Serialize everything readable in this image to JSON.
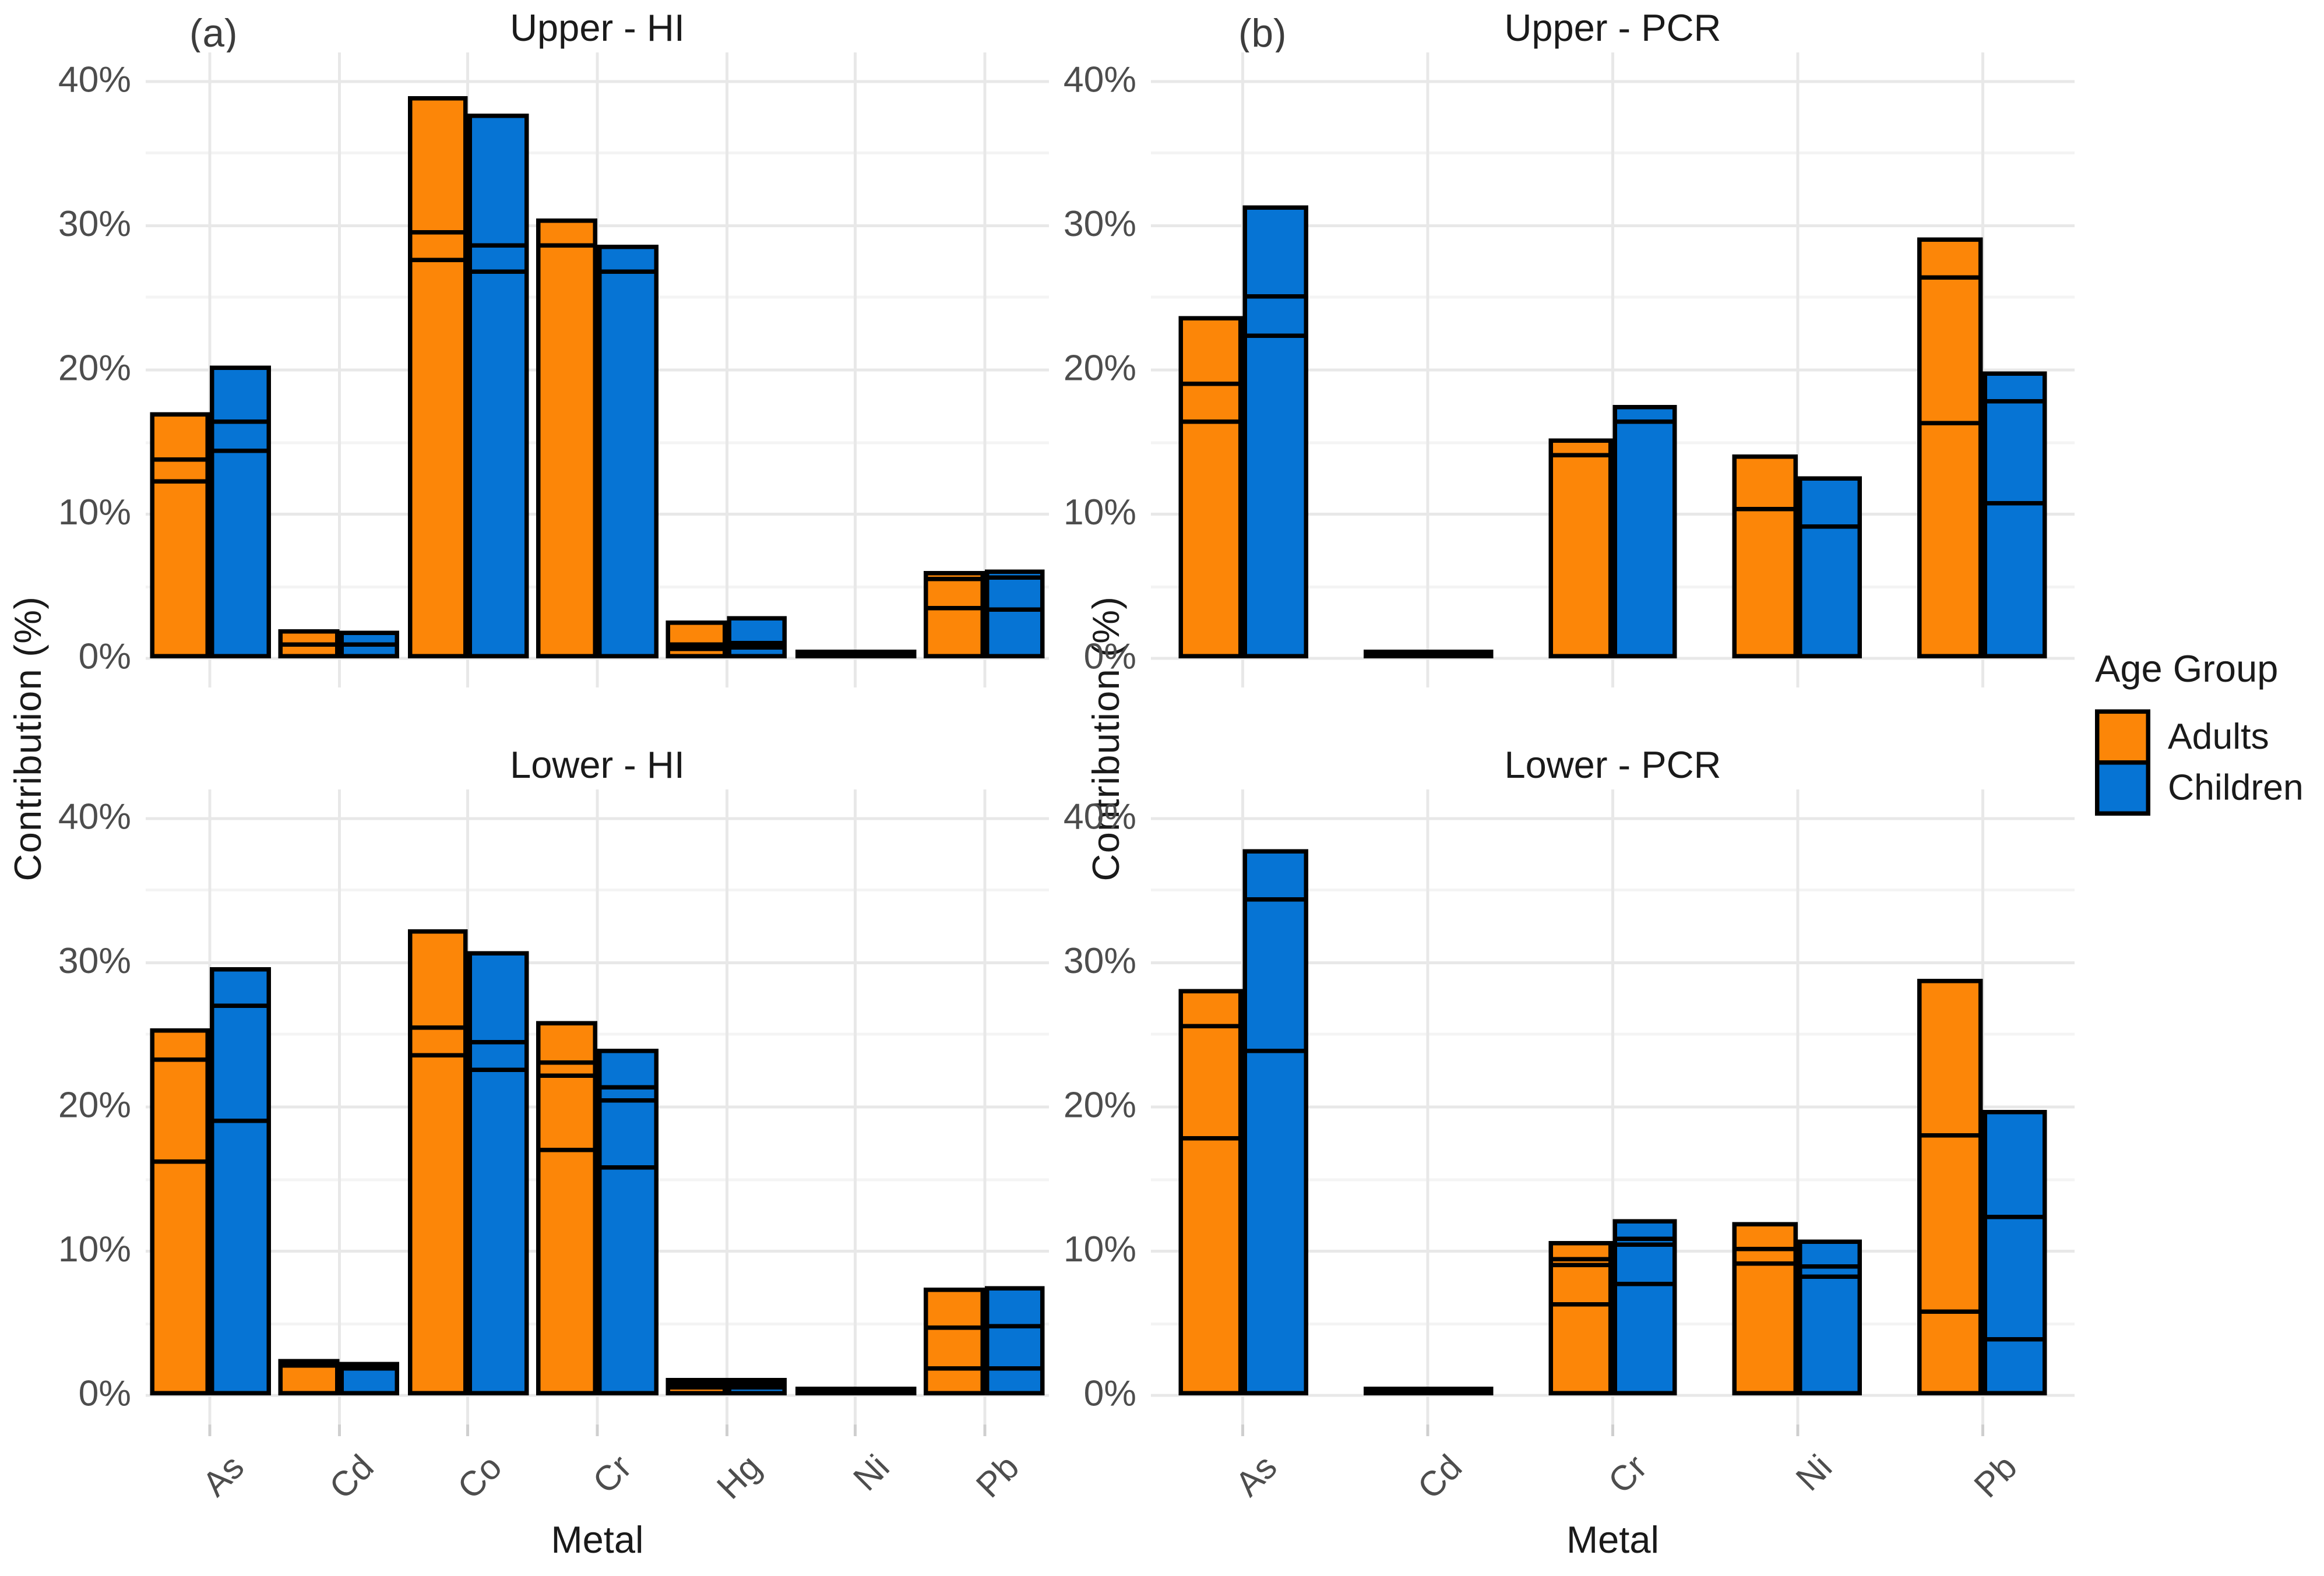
{
  "figure": {
    "tag_a": "(a)",
    "tag_b": "(b)",
    "background": "#ffffff"
  },
  "axes": {
    "y_label": "Contribution (%)",
    "x_label": "Metal",
    "y_tick_labels": [
      "0%",
      "10%",
      "20%",
      "30%",
      "40%"
    ],
    "y_tick_values": [
      0,
      10,
      20,
      30,
      40
    ],
    "y_minor_values": [
      5,
      15,
      25,
      35
    ],
    "ylim": [
      0,
      40
    ]
  },
  "legend": {
    "title": "Age Group",
    "entries": [
      {
        "label": "Adults",
        "color": "#fc8608"
      },
      {
        "label": "Children",
        "color": "#0674d4"
      }
    ]
  },
  "colors": {
    "adults_orange": "#fc8608",
    "children_blue": "#0674d4",
    "bar_border": "#000000",
    "grid_major": "#e8e8e8",
    "grid_minor": "#f4f4f4",
    "tick_text": "#4d4d4d",
    "title_text": "#1a1a1a"
  },
  "chart_data": [
    {
      "type": "bar",
      "title": "Upper - HI",
      "facet_tag": "a",
      "categories": [
        "As",
        "Cd",
        "Co",
        "Cr",
        "Hg",
        "Ni",
        "Pb"
      ],
      "ylim": [
        0,
        40
      ],
      "stacked_note": "values are cumulative segment boundaries in percent; last value = bar total",
      "series": [
        {
          "name": "Adults",
          "cum": [
            [
              12.3,
              13.8,
              17.1
            ],
            [
              1.0,
              2.0
            ],
            [
              27.6,
              29.5,
              39.0
            ],
            [
              28.6,
              30.5
            ],
            [
              0.7,
              1.0,
              2.6
            ],
            [
              0.4
            ],
            [
              3.5,
              5.5,
              6.1
            ]
          ]
        },
        {
          "name": "Children",
          "cum": [
            [
              14.4,
              16.4,
              20.3
            ],
            [
              0.95,
              1.9
            ],
            [
              26.8,
              28.6,
              37.8
            ],
            [
              26.8,
              28.7
            ],
            [
              0.8,
              1.1,
              2.9
            ],
            [
              0.2
            ],
            [
              3.4,
              5.6,
              6.2
            ]
          ]
        }
      ]
    },
    {
      "type": "bar",
      "title": "Lower - HI",
      "facet_tag": "a",
      "categories": [
        "As",
        "Cd",
        "Co",
        "Cr",
        "Hg",
        "Ni",
        "Pb"
      ],
      "ylim": [
        0,
        40
      ],
      "series": [
        {
          "name": "Adults",
          "cum": [
            [
              16.2,
              23.3,
              25.5
            ],
            [
              2.1,
              2.5
            ],
            [
              23.6,
              25.5,
              32.3
            ],
            [
              17.0,
              22.2,
              23.1,
              26.0
            ],
            [
              0.55,
              0.8,
              1.2
            ],
            [
              0.45
            ],
            [
              1.85,
              4.75,
              7.5
            ]
          ]
        },
        {
          "name": "Children",
          "cum": [
            [
              19.0,
              27.0,
              29.7
            ],
            [
              1.9,
              2.3
            ],
            [
              22.6,
              24.5,
              30.8
            ],
            [
              15.8,
              20.5,
              21.4,
              24.0
            ],
            [
              0.6,
              0.85,
              1.2
            ],
            [
              0.2
            ],
            [
              1.9,
              4.85,
              7.6
            ]
          ]
        }
      ]
    },
    {
      "type": "bar",
      "title": "Upper - PCR",
      "facet_tag": "b",
      "categories": [
        "As",
        "Cd",
        "Cr",
        "Ni",
        "Pb"
      ],
      "ylim": [
        0,
        40
      ],
      "series": [
        {
          "name": "Adults",
          "cum": [
            [
              16.4,
              19.0,
              23.7
            ],
            [
              0.35
            ],
            [
              14.1,
              15.3
            ],
            [
              10.4,
              14.1
            ],
            [
              16.3,
              26.4,
              29.2
            ]
          ]
        },
        {
          "name": "Children",
          "cum": [
            [
              22.4,
              25.1,
              31.4
            ],
            [
              0.3
            ],
            [
              16.4,
              17.6
            ],
            [
              9.2,
              12.6
            ],
            [
              10.8,
              17.8,
              19.9
            ]
          ]
        }
      ]
    },
    {
      "type": "bar",
      "title": "Lower - PCR",
      "facet_tag": "b",
      "categories": [
        "As",
        "Cd",
        "Cr",
        "Ni",
        "Pb"
      ],
      "ylim": [
        0,
        40
      ],
      "series": [
        {
          "name": "Adults",
          "cum": [
            [
              17.8,
              25.6,
              28.2
            ],
            [
              0.35
            ],
            [
              6.3,
              9.1,
              9.5,
              10.7
            ],
            [
              9.2,
              10.2,
              12.0
            ],
            [
              5.8,
              18.0,
              28.9
            ]
          ]
        },
        {
          "name": "Children",
          "cum": [
            [
              23.9,
              34.4,
              37.9
            ],
            [
              0.3
            ],
            [
              7.7,
              10.5,
              10.9,
              12.2
            ],
            [
              8.2,
              8.9,
              10.8
            ],
            [
              3.9,
              12.4,
              19.8
            ]
          ]
        }
      ]
    }
  ]
}
